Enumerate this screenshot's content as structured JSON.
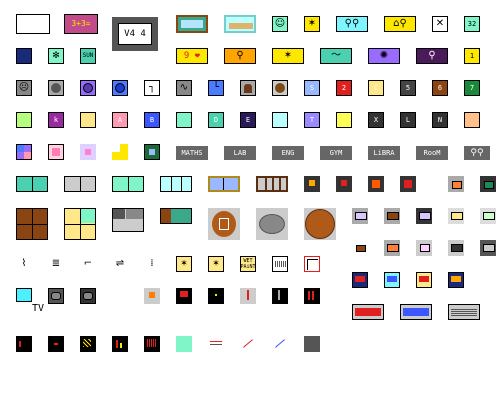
{
  "palette": {
    "teal": "#4bd1b0",
    "mint": "#7ff5c8",
    "gray": "#666666",
    "dark": "#333333",
    "brown": "#8b4513",
    "darkbrown": "#5a2e0e",
    "yellow": "#ffe800",
    "purple": "#3b2a6b",
    "blue": "#3b55ff",
    "red": "#e02020"
  },
  "labels": {
    "sum": "3+3=",
    "va": "V4 4",
    "n32": "32",
    "num1": "1",
    "heart": "9 ❤",
    "a": "A",
    "b": "B",
    "d": "D",
    "e": "E",
    "t": "T",
    "x": "X",
    "l": "L",
    "n": "N",
    "c": "C",
    "s": "S",
    "six": "6",
    "seven": "7",
    "two": "2",
    "plus": "+",
    "maths": "MATHS",
    "lab": "LAB",
    "eng": "ENG",
    "gym": "GYM",
    "libra": "LiBRA",
    "room": "RooM",
    "tv": "TV",
    "wet": "WET",
    "paint": "PAiNT"
  }
}
